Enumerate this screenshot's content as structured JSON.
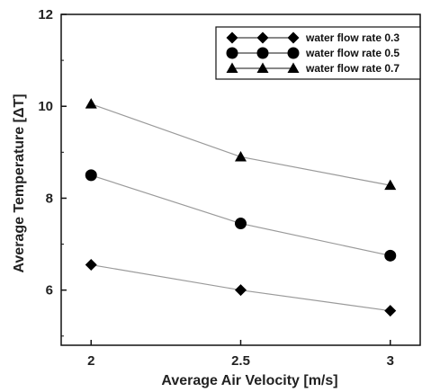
{
  "chart_data": {
    "type": "line",
    "title": "",
    "xlabel": "Average Air Velocity [m/s]",
    "ylabel": "Average Temperature [ΔT]",
    "x": [
      2,
      2.5,
      3
    ],
    "xlim": [
      1.9,
      3.1
    ],
    "ylim": [
      4.8,
      12
    ],
    "xticks": [
      "2",
      "2.5",
      "3"
    ],
    "yticks": [
      "6",
      "8",
      "10",
      "12"
    ],
    "grid": false,
    "legend_position": "top-right",
    "line_color": "#9a9a9a",
    "marker_color": "#000000",
    "series": [
      {
        "name": "water flow rate 0.3",
        "marker": "diamond",
        "values": [
          6.55,
          6.0,
          5.55
        ]
      },
      {
        "name": "water flow rate 0.5",
        "marker": "circle",
        "values": [
          8.5,
          7.45,
          6.75
        ]
      },
      {
        "name": "water flow rate 0.7",
        "marker": "triangle",
        "values": [
          10.05,
          8.9,
          8.28
        ]
      }
    ]
  }
}
